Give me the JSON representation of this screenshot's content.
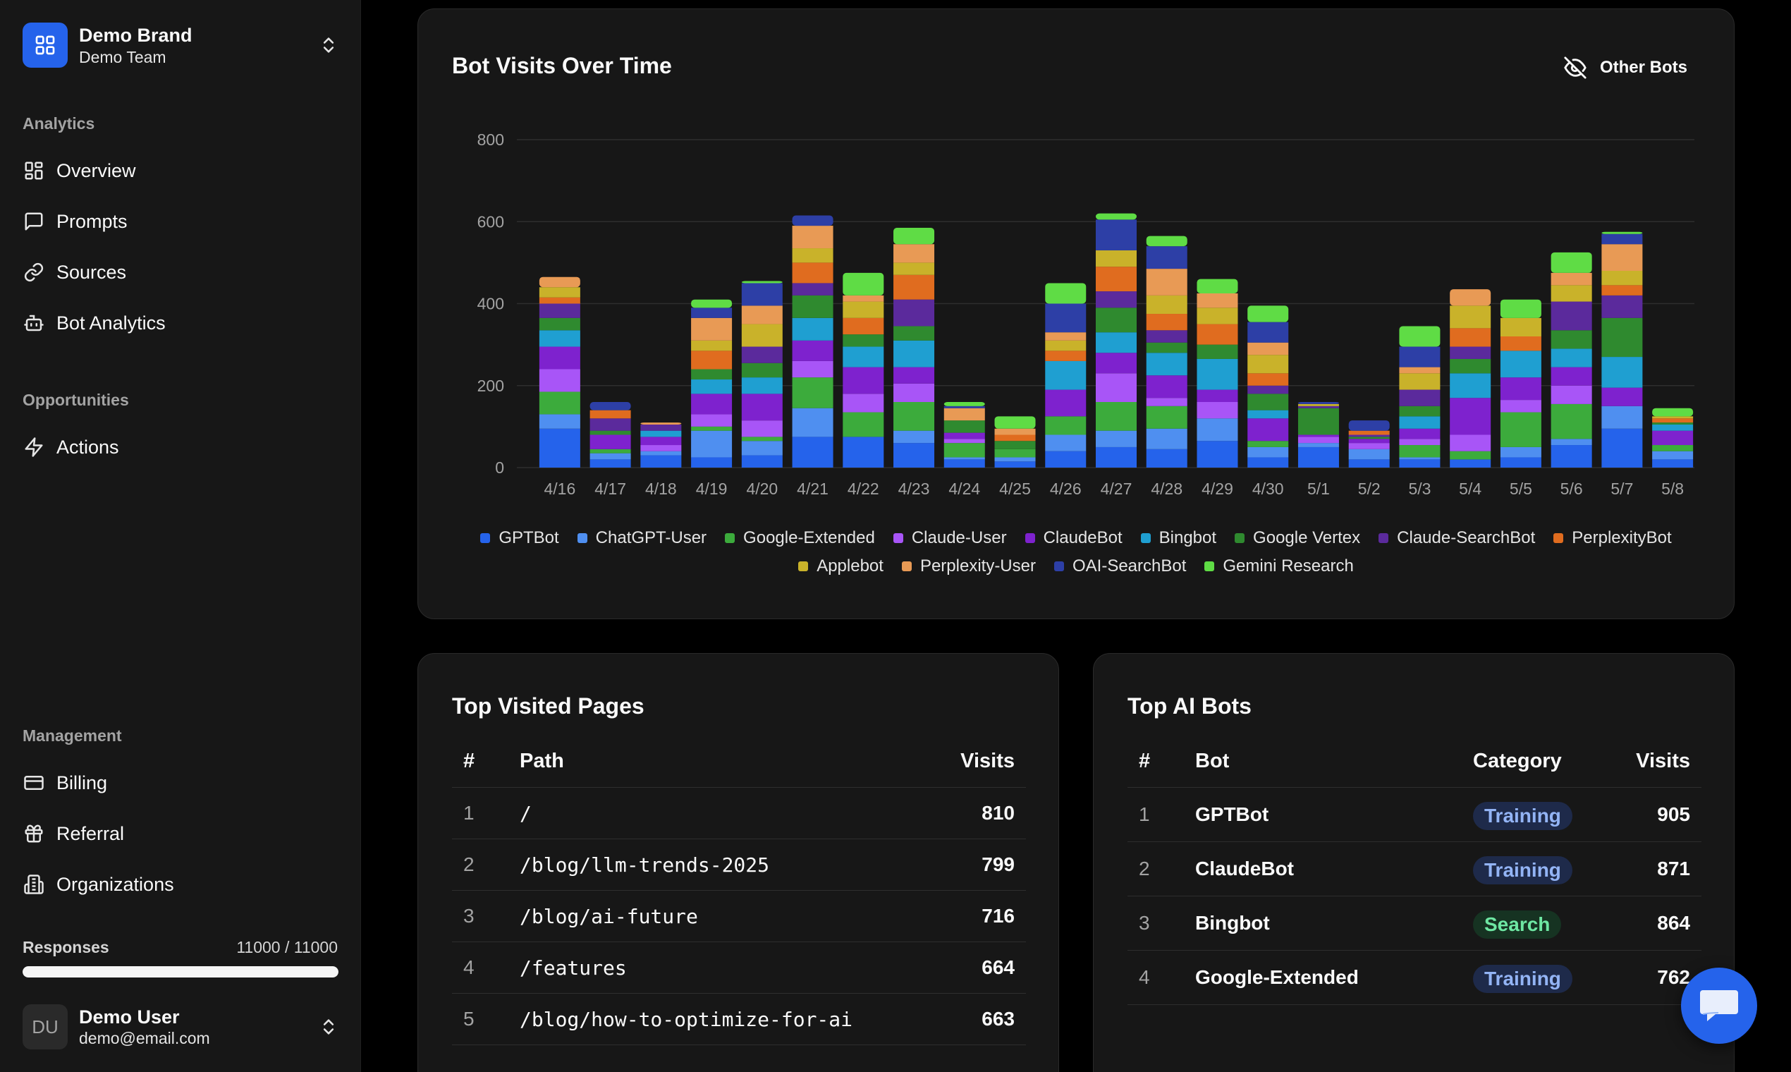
{
  "brand": {
    "name": "Demo Brand",
    "team": "Demo Team"
  },
  "sidebar": {
    "analytics_label": "Analytics",
    "analytics_items": [
      {
        "label": "Overview",
        "icon": "dashboard-icon"
      },
      {
        "label": "Prompts",
        "icon": "message-square-icon"
      },
      {
        "label": "Sources",
        "icon": "link-icon"
      },
      {
        "label": "Bot Analytics",
        "icon": "bot-icon"
      }
    ],
    "opportunities_label": "Opportunities",
    "opportunities_items": [
      {
        "label": "Actions",
        "icon": "lightning-icon"
      }
    ],
    "management_label": "Management",
    "management_items": [
      {
        "label": "Billing",
        "icon": "credit-card-icon"
      },
      {
        "label": "Referral",
        "icon": "gift-icon"
      },
      {
        "label": "Organizations",
        "icon": "building-icon"
      }
    ],
    "responses": {
      "label": "Responses",
      "count": "11000 / 11000",
      "fraction": 1.0
    }
  },
  "user": {
    "initials": "DU",
    "name": "Demo User",
    "email": "demo@email.com"
  },
  "bot_visits": {
    "title": "Bot Visits Over Time",
    "toggle_label": "Other Bots"
  },
  "chart_data": {
    "type": "bar",
    "stacked": true,
    "ylim": [
      0,
      800
    ],
    "yticks": [
      0,
      200,
      400,
      600,
      800
    ],
    "grid": true,
    "legend_position": "bottom",
    "categories": [
      "4/16",
      "4/17",
      "4/18",
      "4/19",
      "4/20",
      "4/21",
      "4/22",
      "4/23",
      "4/24",
      "4/25",
      "4/26",
      "4/27",
      "4/28",
      "4/29",
      "4/30",
      "5/1",
      "5/2",
      "5/3",
      "5/4",
      "5/5",
      "5/6",
      "5/7",
      "5/8"
    ],
    "series": [
      {
        "name": "GPTBot",
        "color": "#2563eb",
        "values": [
          95,
          20,
          30,
          25,
          30,
          75,
          75,
          60,
          20,
          15,
          40,
          50,
          45,
          65,
          25,
          50,
          20,
          20,
          20,
          25,
          55,
          95,
          20
        ]
      },
      {
        "name": "ChatGPT-User",
        "color": "#4f8ff0",
        "values": [
          35,
          15,
          10,
          65,
          35,
          70,
          0,
          30,
          5,
          10,
          40,
          40,
          50,
          55,
          25,
          10,
          25,
          5,
          0,
          25,
          15,
          55,
          20
        ]
      },
      {
        "name": "Google-Extended",
        "color": "#3cab3c",
        "values": [
          55,
          10,
          0,
          10,
          10,
          75,
          60,
          70,
          35,
          20,
          45,
          70,
          55,
          0,
          15,
          0,
          0,
          30,
          20,
          85,
          85,
          0,
          15
        ]
      },
      {
        "name": "Claude-User",
        "color": "#a855f7",
        "values": [
          55,
          0,
          15,
          30,
          40,
          40,
          45,
          45,
          10,
          0,
          0,
          70,
          20,
          40,
          0,
          15,
          15,
          15,
          40,
          30,
          45,
          0,
          0
        ]
      },
      {
        "name": "ClaudeBot",
        "color": "#7e22ce",
        "values": [
          55,
          35,
          20,
          50,
          65,
          50,
          65,
          40,
          15,
          0,
          65,
          50,
          55,
          30,
          55,
          5,
          10,
          25,
          90,
          55,
          45,
          45,
          35
        ]
      },
      {
        "name": "Bingbot",
        "color": "#1f9fd1",
        "values": [
          40,
          0,
          15,
          35,
          40,
          55,
          50,
          65,
          0,
          0,
          70,
          50,
          55,
          75,
          20,
          0,
          0,
          30,
          60,
          65,
          45,
          75,
          15
        ]
      },
      {
        "name": "Google Vertex",
        "color": "#2f8a2f",
        "values": [
          30,
          10,
          0,
          25,
          35,
          55,
          30,
          35,
          30,
          20,
          0,
          60,
          25,
          35,
          40,
          65,
          5,
          25,
          35,
          0,
          45,
          95,
          5
        ]
      },
      {
        "name": "Claude-SearchBot",
        "color": "#5b2a9c",
        "values": [
          35,
          30,
          15,
          0,
          40,
          30,
          0,
          65,
          0,
          0,
          0,
          40,
          30,
          0,
          20,
          5,
          5,
          40,
          30,
          0,
          70,
          55,
          0
        ]
      },
      {
        "name": "PerplexityBot",
        "color": "#e06c1f",
        "values": [
          15,
          20,
          0,
          45,
          0,
          50,
          40,
          60,
          0,
          15,
          25,
          60,
          40,
          50,
          30,
          0,
          10,
          0,
          45,
          35,
          0,
          25,
          10
        ]
      },
      {
        "name": "Applebot",
        "color": "#c9b22a",
        "values": [
          25,
          0,
          0,
          25,
          55,
          35,
          40,
          30,
          0,
          0,
          25,
          40,
          45,
          40,
          45,
          5,
          0,
          40,
          55,
          45,
          40,
          35,
          5
        ]
      },
      {
        "name": "Perplexity-User",
        "color": "#e89a55",
        "values": [
          25,
          0,
          5,
          55,
          45,
          55,
          15,
          45,
          30,
          15,
          20,
          0,
          65,
          35,
          30,
          0,
          0,
          15,
          40,
          0,
          30,
          65,
          0
        ]
      },
      {
        "name": "OAI-SearchBot",
        "color": "#2d3fa6",
        "values": [
          0,
          20,
          0,
          25,
          55,
          25,
          0,
          0,
          5,
          0,
          70,
          75,
          55,
          0,
          50,
          5,
          25,
          50,
          0,
          0,
          0,
          25,
          0
        ]
      },
      {
        "name": "Gemini Research",
        "color": "#5fdc45",
        "values": [
          0,
          0,
          0,
          20,
          5,
          0,
          55,
          40,
          10,
          30,
          50,
          15,
          25,
          35,
          40,
          0,
          0,
          50,
          0,
          45,
          50,
          5,
          20
        ]
      }
    ]
  },
  "top_pages": {
    "title": "Top Visited Pages",
    "headers": {
      "index": "#",
      "path": "Path",
      "visits": "Visits"
    },
    "rows": [
      {
        "index": "1",
        "path": "/",
        "visits": "810"
      },
      {
        "index": "2",
        "path": "/blog/llm-trends-2025",
        "visits": "799"
      },
      {
        "index": "3",
        "path": "/blog/ai-future",
        "visits": "716"
      },
      {
        "index": "4",
        "path": "/features",
        "visits": "664"
      },
      {
        "index": "5",
        "path": "/blog/how-to-optimize-for-ai",
        "visits": "663"
      }
    ]
  },
  "top_bots": {
    "title": "Top AI Bots",
    "headers": {
      "index": "#",
      "bot": "Bot",
      "category": "Category",
      "visits": "Visits"
    },
    "rows": [
      {
        "index": "1",
        "bot": "GPTBot",
        "category": "Training",
        "visits": "905"
      },
      {
        "index": "2",
        "bot": "ClaudeBot",
        "category": "Training",
        "visits": "871"
      },
      {
        "index": "3",
        "bot": "Bingbot",
        "category": "Search",
        "visits": "864"
      },
      {
        "index": "4",
        "bot": "Google-Extended",
        "category": "Training",
        "visits": "762"
      }
    ]
  }
}
